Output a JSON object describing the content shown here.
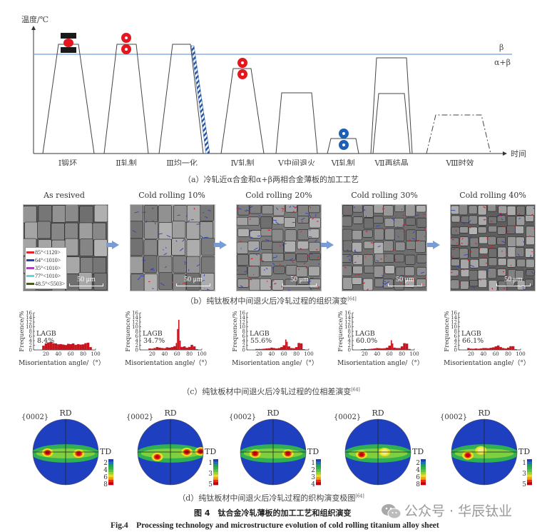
{
  "panel_a": {
    "y_axis_label": "温度/℃",
    "x_axis_label": "时间",
    "phase_above": "β",
    "phase_below": "α+β",
    "steps": [
      {
        "label": "Ⅰ锻坯",
        "icon": "forging-press-icon"
      },
      {
        "label": "Ⅱ轧制",
        "icon": "red-rollers-icon"
      },
      {
        "label": "Ⅲ均一化",
        "icon": "water-quench-hatch"
      },
      {
        "label": "Ⅳ轧制",
        "icon": "red-rollers-icon"
      },
      {
        "label": "Ⅴ中间退火",
        "icon": "none"
      },
      {
        "label": "Ⅵ轧制",
        "icon": "blue-rollers-icon"
      },
      {
        "label": "Ⅶ再结晶",
        "icon": "none"
      },
      {
        "label": "Ⅷ时效",
        "icon": "dash-dot-profile"
      }
    ],
    "caption": "（a）冷轧近α合金和α+β两相合金薄板的加工工艺"
  },
  "panel_b": {
    "images": [
      {
        "title": "As resived",
        "scale": "50 μm"
      },
      {
        "title": "Cold rolling 10%",
        "scale": "50 μm"
      },
      {
        "title": "Cold rolling 20%",
        "scale": "50 μm"
      },
      {
        "title": "Cold rolling 30%",
        "scale": "50 μm"
      },
      {
        "title": "Cold rolling 40%",
        "scale": "50 μm"
      }
    ],
    "legend": [
      {
        "label": "85°<1120>",
        "color": "#e8202a"
      },
      {
        "label": "64°<1010>",
        "color": "#2c3fb0"
      },
      {
        "label": "35°<1010>",
        "color": "#b040b8"
      },
      {
        "label": "77°<1010>",
        "color": "#5ed8d8"
      },
      {
        "label": "48.5°<5503>",
        "color": "#4a5a20"
      }
    ],
    "caption": "（b）纯钛板材中间退火后冷轧过程的组织演变",
    "ref": "[64]"
  },
  "chart_data": [
    {
      "type": "bar",
      "title": "",
      "annotation": "LAGB",
      "lagb": "8.4%",
      "xlabel": "Misorientation angle/（°）",
      "ylabel": "Frequence/%",
      "xlim": [
        0,
        100
      ],
      "ylim": [
        0,
        16
      ],
      "xticks": [
        "20",
        "40",
        "60",
        "80",
        "100"
      ],
      "yticks": [
        "0",
        "2",
        "4",
        "6",
        "8",
        "10",
        "12",
        "14",
        "16"
      ],
      "x": [
        16,
        20,
        24,
        28,
        32,
        36,
        40,
        44,
        48,
        52,
        56,
        60,
        64,
        68,
        72,
        76,
        80,
        84,
        88,
        92
      ],
      "values": [
        1.8,
        2.8,
        3.2,
        3.4,
        2.9,
        2.8,
        2.4,
        2.5,
        2.3,
        2.1,
        2.6,
        2.5,
        2.8,
        2.2,
        2.5,
        2.3,
        2.4,
        2.9,
        3.1,
        1.2
      ]
    },
    {
      "type": "bar",
      "title": "",
      "annotation": "LAGB",
      "lagb": "34.7%",
      "xlabel": "Misorientation angle/（°）",
      "ylabel": "Frequence/%",
      "xlim": [
        0,
        100
      ],
      "ylim": [
        0,
        16
      ],
      "xticks": [
        "20",
        "40",
        "60",
        "80",
        "100"
      ],
      "yticks": [
        "0",
        "2",
        "4",
        "6",
        "8",
        "10",
        "12",
        "14",
        "16"
      ],
      "x": [
        16,
        20,
        24,
        28,
        32,
        36,
        40,
        44,
        48,
        52,
        56,
        60,
        62,
        64,
        66,
        68,
        72,
        76,
        80,
        84,
        88,
        92
      ],
      "values": [
        0.6,
        0.5,
        0.8,
        1.2,
        1.0,
        0.8,
        0.7,
        1.1,
        1.0,
        1.2,
        1.6,
        3.0,
        9.0,
        13.0,
        4.0,
        1.3,
        1.5,
        1.0,
        1.3,
        2.2,
        1.5,
        0.3
      ]
    },
    {
      "type": "bar",
      "title": "",
      "annotation": "LAGB",
      "lagb": "55.6%",
      "xlabel": "Misorientation angle/（°）",
      "ylabel": "Frequence/%",
      "xlim": [
        0,
        100
      ],
      "ylim": [
        0,
        16
      ],
      "xticks": [
        "20",
        "40",
        "60",
        "80",
        "100"
      ],
      "yticks": [
        "0",
        "2",
        "4",
        "6",
        "8",
        "10",
        "12",
        "14",
        "16"
      ],
      "x": [
        16,
        20,
        24,
        28,
        32,
        36,
        40,
        44,
        48,
        52,
        56,
        60,
        64,
        66,
        68,
        72,
        76,
        80,
        84,
        88,
        92
      ],
      "values": [
        0.4,
        0.3,
        0.4,
        0.5,
        0.6,
        0.7,
        1.0,
        0.8,
        0.6,
        0.8,
        1.2,
        2.0,
        4.5,
        3.5,
        1.5,
        0.8,
        0.7,
        1.2,
        3.0,
        2.8,
        0.3
      ]
    },
    {
      "type": "bar",
      "title": "",
      "annotation": "LAGB",
      "lagb": "60.0%",
      "xlabel": "Misorientation angle/（°）",
      "ylabel": "Frequence/%",
      "xlim": [
        0,
        100
      ],
      "ylim": [
        0,
        16
      ],
      "xticks": [
        "20",
        "40",
        "60",
        "80",
        "100"
      ],
      "yticks": [
        "0",
        "2",
        "4",
        "6",
        "8",
        "10",
        "12",
        "14",
        "16"
      ],
      "x": [
        16,
        20,
        24,
        28,
        32,
        36,
        40,
        44,
        48,
        52,
        56,
        60,
        64,
        66,
        68,
        72,
        76,
        80,
        84,
        88,
        92
      ],
      "values": [
        0.3,
        0.3,
        0.3,
        0.4,
        0.5,
        0.6,
        0.8,
        0.7,
        0.6,
        0.7,
        1.0,
        1.8,
        4.2,
        2.8,
        1.0,
        0.8,
        0.8,
        1.5,
        2.9,
        2.7,
        0.4
      ]
    },
    {
      "type": "bar",
      "title": "",
      "annotation": "LAGB",
      "lagb": "66.1%",
      "xlabel": "Misorientation angle/（°）",
      "ylabel": "Frequence/%",
      "xlim": [
        0,
        100
      ],
      "ylim": [
        0,
        16
      ],
      "xticks": [
        "20",
        "40",
        "60",
        "80",
        "100"
      ],
      "yticks": [
        "0",
        "2",
        "4",
        "6",
        "8",
        "10",
        "12",
        "14",
        "16"
      ],
      "x": [
        16,
        20,
        24,
        28,
        32,
        36,
        40,
        44,
        48,
        52,
        56,
        60,
        64,
        68,
        72,
        76,
        80,
        84,
        88,
        92
      ],
      "values": [
        0.8,
        0.5,
        0.5,
        0.6,
        0.5,
        0.6,
        0.8,
        0.8,
        0.7,
        0.9,
        1.1,
        1.5,
        1.9,
        1.2,
        0.8,
        0.6,
        1.0,
        1.6,
        1.6,
        0.3
      ]
    }
  ],
  "panel_c": {
    "caption": "（c）纯钛板材中间退火后冷轧过程的位相差演变",
    "ref": "[64]"
  },
  "panel_d": {
    "poles": [
      {
        "plane": "{0002}",
        "rd": "RD",
        "td": "TD",
        "scale": [
          "2",
          "4",
          "6",
          "8"
        ]
      },
      {
        "plane": "{0002}",
        "rd": "RD",
        "td": "TD",
        "scale": [
          "1",
          "3",
          "5"
        ]
      },
      {
        "plane": "{0002}",
        "rd": "RD",
        "td": "TD",
        "scale": [
          "1",
          "2",
          "3",
          "4"
        ]
      },
      {
        "plane": "{0002}",
        "rd": "RD",
        "td": "TD",
        "scale": [
          "2",
          "4",
          "6",
          "8"
        ]
      },
      {
        "plane": "{0002}",
        "rd": "RD",
        "td": "TD",
        "scale": [
          "1",
          "3",
          "5"
        ]
      }
    ],
    "caption": "（d）纯钛板材中间退火后冷轧过程的织构演变极图",
    "ref": "[64]"
  },
  "figure": {
    "title_cn": "图 4　钛合金冷轧薄板的加工工艺和组织演变",
    "title_en": "Fig.4　Processing technology and microstructure evolution of cold rolling titanium alloy sheet"
  },
  "watermark": {
    "text": "公众号 · 华辰钛业",
    "icon": "wechat-icon"
  },
  "colors": {
    "beta_line": "#6fa0e0",
    "bar": "#c8141e",
    "arrow": "#7a9cd6",
    "roll_red": "#e5161d",
    "roll_blue": "#1e5fb8"
  }
}
